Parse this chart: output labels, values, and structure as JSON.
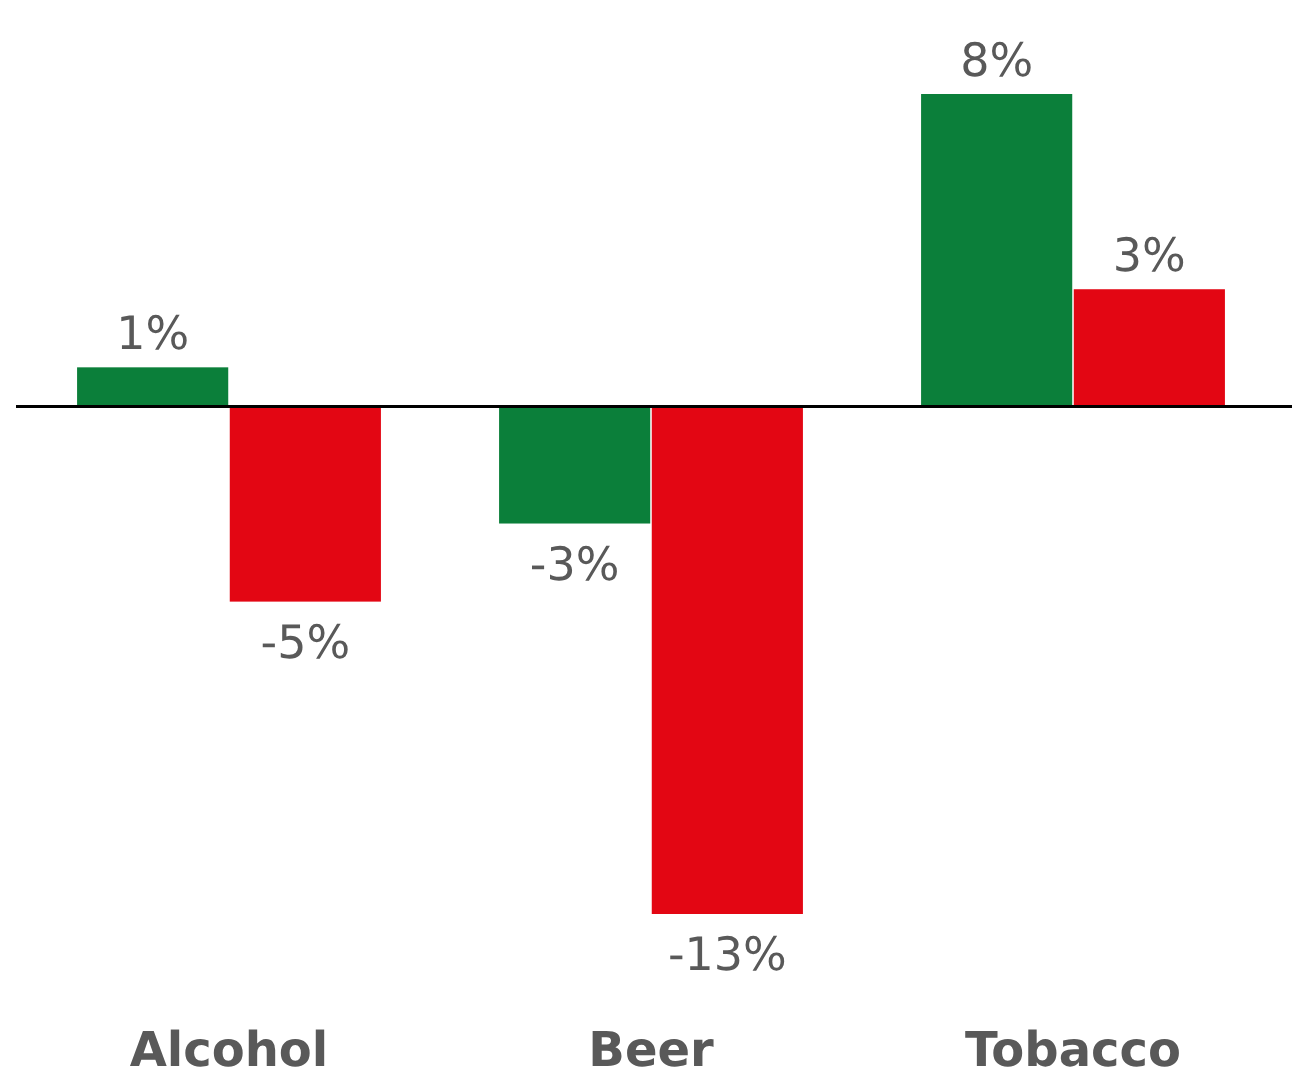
{
  "chart_data": {
    "type": "bar",
    "categories": [
      "Alcohol",
      "Beer",
      "Tobacco"
    ],
    "series": [
      {
        "color": "#0b7f3a",
        "values": [
          1,
          -3,
          8
        ],
        "value_labels": [
          "1%",
          "-3%",
          "8%"
        ]
      },
      {
        "color": "#e30613",
        "values": [
          -5,
          -13,
          3
        ],
        "value_labels": [
          "-5%",
          "-13%",
          "3%"
        ]
      }
    ]
  }
}
